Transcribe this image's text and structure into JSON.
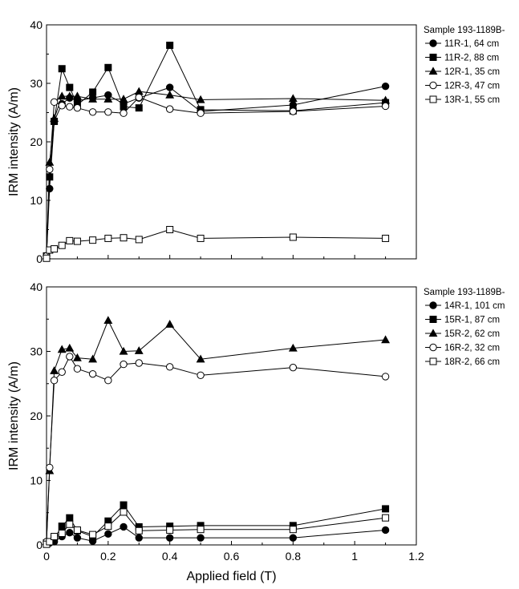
{
  "chart_data": [
    {
      "type": "line",
      "title": "",
      "xlabel": "",
      "ylabel": "IRM intensity (A/m)",
      "xlim": [
        0,
        1.2
      ],
      "ylim": [
        0,
        40
      ],
      "xticks": [],
      "xtick_labels": [],
      "yticks": [
        0,
        10,
        20,
        30,
        40
      ],
      "grid": false,
      "legend_title": "Sample 193-1189B-",
      "legend_position": "right outside",
      "series": [
        {
          "name": "11R-1, 64 cm",
          "marker": "filled-circle",
          "x": [
            0,
            0.01,
            0.025,
            0.05,
            0.075,
            0.1,
            0.15,
            0.2,
            0.25,
            0.3,
            0.4,
            0.5,
            0.8,
            1.1
          ],
          "y": [
            0.5,
            12,
            23.5,
            26.5,
            27.5,
            27,
            27.5,
            28,
            26.5,
            27.5,
            29.3,
            25.2,
            26.3,
            29.5
          ]
        },
        {
          "name": "11R-2, 88 cm",
          "marker": "filled-square",
          "x": [
            0,
            0.01,
            0.025,
            0.05,
            0.075,
            0.1,
            0.15,
            0.2,
            0.25,
            0.3,
            0.4,
            0.5,
            0.8,
            1.1
          ],
          "y": [
            0.5,
            14,
            23.5,
            32.5,
            29.3,
            26.3,
            28.5,
            32.7,
            26,
            25.8,
            36.5,
            25.5,
            25.3,
            26.7
          ]
        },
        {
          "name": "12R-1, 35 cm",
          "marker": "filled-triangle",
          "x": [
            0,
            0.01,
            0.025,
            0.05,
            0.075,
            0.1,
            0.15,
            0.2,
            0.25,
            0.3,
            0.4,
            0.5,
            0.8,
            1.1
          ],
          "y": [
            0.5,
            16.5,
            24,
            27.8,
            27.8,
            27.8,
            27.3,
            27.3,
            27.3,
            28.6,
            28,
            27.2,
            27.4,
            27.1
          ]
        },
        {
          "name": "12R-3, 47 cm",
          "marker": "open-circle",
          "x": [
            0,
            0.01,
            0.025,
            0.05,
            0.075,
            0.1,
            0.15,
            0.2,
            0.25,
            0.3,
            0.4,
            0.5,
            0.8,
            1.1
          ],
          "y": [
            0.5,
            15.3,
            26.8,
            26.2,
            26,
            25.8,
            25.1,
            25.1,
            24.9,
            27.6,
            25.6,
            24.9,
            25.2,
            26.1
          ]
        },
        {
          "name": "13R-1, 55 cm",
          "marker": "open-square",
          "x": [
            0,
            0.01,
            0.025,
            0.05,
            0.075,
            0.1,
            0.15,
            0.2,
            0.25,
            0.3,
            0.4,
            0.5,
            0.8,
            1.1
          ],
          "y": [
            0.1,
            1.5,
            1.7,
            2.3,
            3.1,
            3,
            3.2,
            3.5,
            3.6,
            3.3,
            5,
            3.5,
            3.7,
            3.5
          ]
        }
      ]
    },
    {
      "type": "line",
      "title": "",
      "xlabel": "Applied field (T)",
      "ylabel": "IRM intensity (A/m)",
      "xlim": [
        0,
        1.2
      ],
      "ylim": [
        0,
        40
      ],
      "xticks": [
        0,
        0.2,
        0.4,
        0.6,
        0.8,
        1,
        1.2
      ],
      "xtick_labels": [
        "0",
        "0.2",
        "0.4",
        "0.6",
        "0.8",
        "1",
        "1.2"
      ],
      "yticks": [
        0,
        10,
        20,
        30,
        40
      ],
      "grid": false,
      "legend_title": "Sample 193-1189B-",
      "legend_position": "right outside",
      "series": [
        {
          "name": "14R-1, 101 cm",
          "marker": "filled-circle",
          "x": [
            0,
            0.01,
            0.025,
            0.05,
            0.075,
            0.1,
            0.15,
            0.2,
            0.25,
            0.3,
            0.4,
            0.5,
            0.8,
            1.1
          ],
          "y": [
            0.2,
            0.3,
            0.5,
            1.3,
            1.9,
            1.1,
            0.6,
            1.7,
            2.8,
            1.1,
            1.1,
            1.1,
            1.1,
            2.3
          ]
        },
        {
          "name": "15R-1, 87 cm",
          "marker": "filled-square",
          "x": [
            0,
            0.01,
            0.025,
            0.05,
            0.075,
            0.1,
            0.15,
            0.2,
            0.25,
            0.3,
            0.4,
            0.5,
            0.8,
            1.1
          ],
          "y": [
            0.3,
            0.5,
            1.0,
            2.9,
            4.2,
            2.2,
            1.3,
            3.7,
            6.2,
            2.8,
            2.9,
            3,
            3,
            5.6
          ]
        },
        {
          "name": "15R-2, 62 cm",
          "marker": "filled-triangle",
          "x": [
            0,
            0.01,
            0.025,
            0.05,
            0.075,
            0.1,
            0.15,
            0.2,
            0.25,
            0.3,
            0.4,
            0.5,
            0.8,
            1.1
          ],
          "y": [
            0.5,
            11.5,
            27,
            30.3,
            30.5,
            29,
            28.8,
            34.8,
            30,
            30.1,
            34.2,
            28.8,
            30.5,
            31.8
          ]
        },
        {
          "name": "16R-2, 32 cm",
          "marker": "open-circle",
          "x": [
            0,
            0.01,
            0.025,
            0.05,
            0.075,
            0.1,
            0.15,
            0.2,
            0.25,
            0.3,
            0.4,
            0.5,
            0.8,
            1.1
          ],
          "y": [
            0.5,
            12,
            25.5,
            26.8,
            29.2,
            27.3,
            26.5,
            25.5,
            28,
            28.2,
            27.6,
            26.3,
            27.5,
            26.1
          ]
        },
        {
          "name": "18R-2, 66 cm",
          "marker": "open-square",
          "x": [
            0,
            0.01,
            0.025,
            0.05,
            0.075,
            0.1,
            0.15,
            0.2,
            0.25,
            0.3,
            0.4,
            0.5,
            0.8,
            1.1
          ],
          "y": [
            0.1,
            0.5,
            1.3,
            1.8,
            3.2,
            2.3,
            1.6,
            2.9,
            5.1,
            2.2,
            2.3,
            2.4,
            2.4,
            4.2
          ]
        }
      ]
    }
  ]
}
